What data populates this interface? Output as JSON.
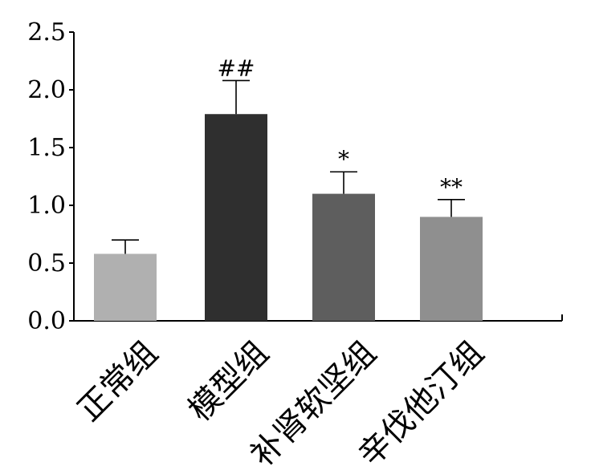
{
  "chart_data": {
    "type": "bar",
    "title": "",
    "xlabel": "",
    "ylabel": "",
    "ylim": [
      0,
      2.5
    ],
    "yticks": [
      "0.0",
      "0.5",
      "1.0",
      "1.5",
      "2.0",
      "2.5"
    ],
    "categories": [
      "正常组",
      "模型组",
      "补肾软坚组",
      "辛伐他汀组"
    ],
    "values": [
      0.58,
      1.79,
      1.1,
      0.9
    ],
    "errors": [
      0.12,
      0.29,
      0.19,
      0.15
    ],
    "significance": [
      "",
      "##",
      "*",
      "**"
    ],
    "colors": [
      "#b0b0b0",
      "#2f2f2f",
      "#5e5e5e",
      "#8f8f8f"
    ],
    "grid": false
  }
}
